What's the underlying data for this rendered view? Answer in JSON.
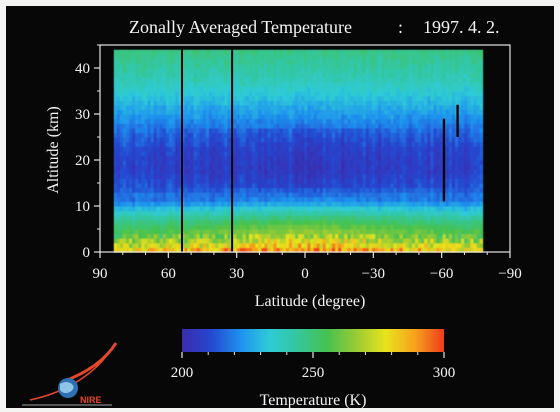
{
  "chart_data": {
    "type": "heatmap",
    "title": "Zonally Averaged Temperature",
    "date": "1997. 4. 2.",
    "title_separator": ":",
    "xlabel": "Latitude (degree)",
    "ylabel": "Altitude (km)",
    "x_ticks": [
      "90",
      "60",
      "30",
      "0",
      "−30",
      "−60",
      "−90"
    ],
    "x_tick_values": [
      90,
      60,
      30,
      0,
      -30,
      -60,
      -90
    ],
    "y_ticks": [
      "0",
      "10",
      "20",
      "30",
      "40"
    ],
    "y_tick_values": [
      0,
      10,
      20,
      30,
      40
    ],
    "xlim": [
      90,
      -90
    ],
    "ylim": [
      0,
      45
    ],
    "data_extent": {
      "lat": [
        84,
        -78
      ],
      "alt": [
        0,
        44
      ]
    },
    "temperature_profile_by_altitude": [
      {
        "alt": 0,
        "temp": 283
      },
      {
        "alt": 1.5,
        "temp": 272
      },
      {
        "alt": 3,
        "temp": 262
      },
      {
        "alt": 5,
        "temp": 255
      },
      {
        "alt": 7,
        "temp": 247
      },
      {
        "alt": 9,
        "temp": 236
      },
      {
        "alt": 11,
        "temp": 222
      },
      {
        "alt": 14,
        "temp": 213
      },
      {
        "alt": 18,
        "temp": 208
      },
      {
        "alt": 22,
        "temp": 210
      },
      {
        "alt": 26,
        "temp": 216
      },
      {
        "alt": 30,
        "temp": 224
      },
      {
        "alt": 34,
        "temp": 232
      },
      {
        "alt": 38,
        "temp": 240
      },
      {
        "alt": 42,
        "temp": 245
      },
      {
        "alt": 44,
        "temp": 248
      }
    ],
    "gap_lines_lat": [
      54,
      32,
      -61,
      -67
    ],
    "colorbar": {
      "label": "Temperature (K)",
      "ticks": [
        "200",
        "250",
        "300"
      ],
      "tick_values": [
        200,
        250,
        300
      ],
      "range": [
        200,
        300
      ],
      "colors": [
        "#3b2cae",
        "#2547d0",
        "#1e90ee",
        "#2ecbd7",
        "#34c69a",
        "#46c24e",
        "#9acb34",
        "#e8e41c",
        "#f7a21c",
        "#ef3c1c"
      ]
    }
  },
  "colors": {
    "background": "#070707",
    "text": "#f4f4f4",
    "page": "#f4f4f2"
  },
  "logo": {
    "text": "NIRE",
    "icon": "globe-swoosh-logo"
  }
}
